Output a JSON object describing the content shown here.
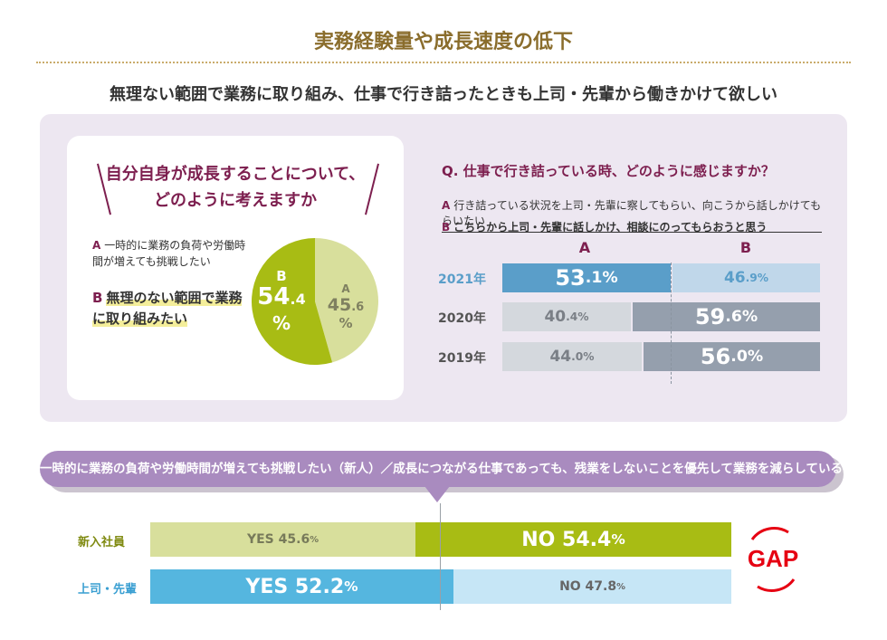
{
  "header": {
    "title": "実務経験量や成長速度の低下",
    "subtitle": "無理ない範囲で業務に取り組み、仕事で行き詰ったときも上司・先輩から働きかけて欲しい"
  },
  "colors": {
    "accent_title": "#8a6d2c",
    "maroon": "#7d1f4f",
    "pie_a": "#d8df9c",
    "pie_b": "#a8bc14",
    "bar_2021_a": "#5a9ec9",
    "bar_2021_b": "#c0d7ea",
    "bar_other_a": "#d4d8dd",
    "bar_other_b": "#959fad",
    "gap_red": "#e60012"
  },
  "pie_card": {
    "title_line1": "自分自身が成長することについて、",
    "title_line2": "どのように考えますか",
    "option_a_key": "A",
    "option_a_text": "一時的に業務の負荷や労働時間が増えても挑戦したい",
    "option_b_key": "B",
    "option_b_text": "無理のない範囲で業務に取り組みたい"
  },
  "bar_card": {
    "question": "Q. 仕事で行き詰っている時、どのように感じますか？",
    "legend_a_key": "A",
    "legend_a_text": "行き詰っている状況を上司・先輩に察してもらい、向こうから話しかけてもらいたい",
    "legend_b_key": "B",
    "legend_b_text": "こちらから上司・先輩に話しかけ、相談にのってもらおうと思う",
    "col_a": "A",
    "col_b": "B"
  },
  "gap_section": {
    "banner": "一時的に業務の負荷や労働時間が増えても挑戦したい（新人）／成長につながる仕事であっても、残業をしないことを優先して業務を減らしている（上司・先輩）",
    "gap_label": "GAP"
  },
  "chart_data": [
    {
      "type": "pie",
      "title": "自分自身が成長することについて、どのように考えますか",
      "slices": [
        {
          "label": "A",
          "display_int": "45",
          "display_dec": ".6",
          "unit": "%",
          "value": 45.6
        },
        {
          "label": "B",
          "display_int": "54",
          "display_dec": ".4",
          "unit": "%",
          "value": 54.4
        }
      ]
    },
    {
      "type": "bar",
      "title": "Q. 仕事で行き詰っている時、どのように感じますか？",
      "stacked": true,
      "categories": [
        "2021年",
        "2020年",
        "2019年"
      ],
      "series": [
        {
          "name": "A",
          "values": [
            53.1,
            40.4,
            44.0
          ],
          "labels_int": [
            "53",
            "40",
            "44"
          ],
          "labels_dec": [
            ".1%",
            ".4%",
            ".0%"
          ]
        },
        {
          "name": "B",
          "values": [
            46.9,
            59.6,
            56.0
          ],
          "labels_int": [
            "46",
            "59",
            "56"
          ],
          "labels_dec": [
            ".9%",
            ".6%",
            ".0%"
          ]
        }
      ]
    },
    {
      "type": "bar",
      "stacked": true,
      "categories": [
        "新入社員",
        "上司・先輩"
      ],
      "series": [
        {
          "name": "YES",
          "values": [
            45.6,
            52.2
          ],
          "labels_main": [
            "YES 45.6",
            "YES 52.2"
          ],
          "labels_unit": [
            "%",
            "%"
          ]
        },
        {
          "name": "NO",
          "values": [
            54.4,
            47.8
          ],
          "labels_main": [
            "NO 54.4",
            "NO 47.8"
          ],
          "labels_unit": [
            "%",
            "%"
          ]
        }
      ]
    }
  ]
}
